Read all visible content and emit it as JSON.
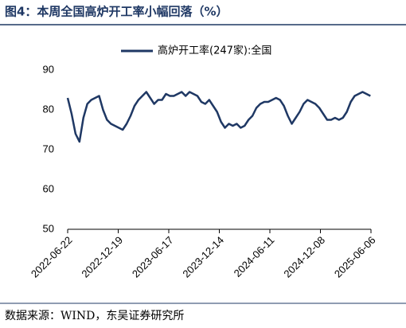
{
  "chart_data": {
    "type": "line",
    "title": "图4：本周全国高炉开工率小幅回落（%）",
    "source": "数据来源：WIND，东吴证券研究所",
    "x": [
      "2022-06-22",
      "2022-07-06",
      "2022-07-20",
      "2022-08-03",
      "2022-08-17",
      "2022-08-31",
      "2022-09-14",
      "2022-09-28",
      "2022-10-12",
      "2022-10-26",
      "2022-11-09",
      "2022-11-23",
      "2022-12-07",
      "2022-12-21",
      "2023-01-04",
      "2023-01-18",
      "2023-02-01",
      "2023-02-15",
      "2023-03-01",
      "2023-03-15",
      "2023-03-29",
      "2023-04-12",
      "2023-04-26",
      "2023-05-10",
      "2023-05-24",
      "2023-06-07",
      "2023-06-21",
      "2023-07-05",
      "2023-07-19",
      "2023-08-02",
      "2023-08-16",
      "2023-08-30",
      "2023-09-13",
      "2023-09-27",
      "2023-10-11",
      "2023-10-25",
      "2023-11-08",
      "2023-11-22",
      "2023-12-06",
      "2023-12-20",
      "2024-01-03",
      "2024-01-17",
      "2024-01-31",
      "2024-02-14",
      "2024-02-28",
      "2024-03-13",
      "2024-03-27",
      "2024-04-10",
      "2024-04-24",
      "2024-05-08",
      "2024-05-22",
      "2024-06-05",
      "2024-06-19",
      "2024-07-03",
      "2024-07-17",
      "2024-07-31",
      "2024-08-14",
      "2024-08-28",
      "2024-09-11",
      "2024-09-25",
      "2024-10-09",
      "2024-10-23",
      "2024-11-06",
      "2024-11-20",
      "2024-12-04",
      "2024-12-18",
      "2025-01-01",
      "2025-01-15",
      "2025-01-29",
      "2025-02-12",
      "2025-02-26",
      "2025-03-12",
      "2025-03-26",
      "2025-04-09",
      "2025-04-23",
      "2025-05-07",
      "2025-05-21",
      "2025-06-04"
    ],
    "series": [
      {
        "name": "高炉开工率(247家):全国",
        "color": "#1f3864",
        "values": [
          83,
          79,
          74,
          72,
          78,
          81.5,
          82.5,
          83,
          83.5,
          80,
          77.5,
          76.5,
          76,
          75.5,
          75,
          76.5,
          78.5,
          81,
          82.5,
          83.5,
          84.5,
          83,
          81.5,
          82.5,
          82.5,
          84,
          83.5,
          83.5,
          84,
          84.5,
          83.5,
          84.5,
          84,
          83.5,
          82,
          81.5,
          82.5,
          81,
          79.5,
          77,
          75.5,
          76.5,
          76,
          76.5,
          75.5,
          76,
          77.5,
          78.5,
          80.5,
          81.5,
          82,
          82,
          82.5,
          83,
          82.5,
          81,
          78.5,
          76.5,
          78,
          79.5,
          81.5,
          82.5,
          82,
          81.5,
          80.5,
          79,
          77.5,
          77.5,
          78,
          77.5,
          78,
          79.5,
          82,
          83.5,
          84,
          84.5,
          84,
          83.5
        ]
      }
    ],
    "xlim": [
      "2022-06-22",
      "2025-06-06"
    ],
    "xticks": [
      "2022-06-22",
      "2022-12-19",
      "2023-06-17",
      "2023-12-14",
      "2024-06-11",
      "2024-12-08",
      "2025-06-06"
    ],
    "ylim": [
      50,
      90
    ],
    "yticks": [
      50,
      60,
      70,
      80,
      90
    ],
    "legend": "top",
    "grid": false
  }
}
